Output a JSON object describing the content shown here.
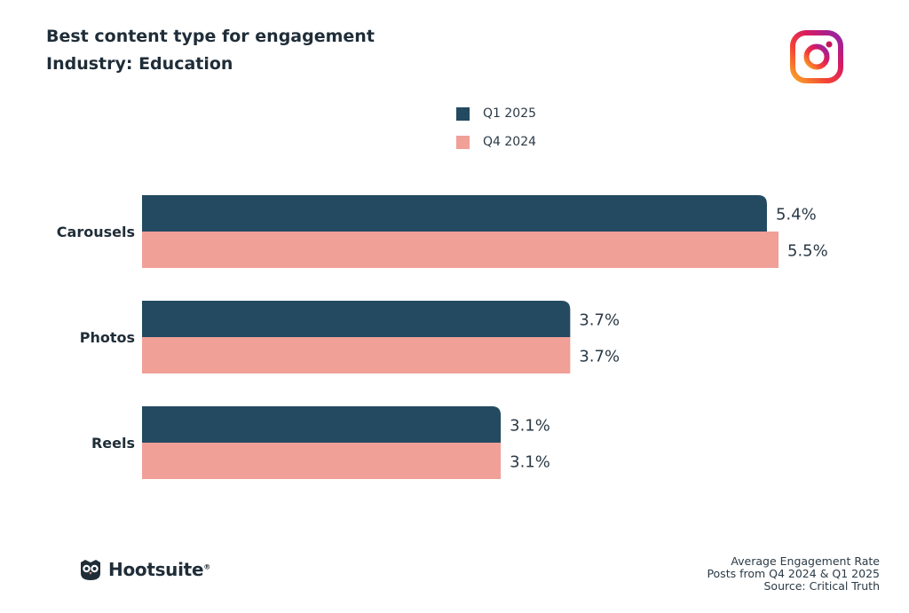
{
  "header": {
    "title": "Best content type for engagement",
    "subtitle": "Industry: Education"
  },
  "icons": {
    "platform": "instagram-icon",
    "brand": "owl-icon"
  },
  "colors": {
    "q1_2025": "#234a61",
    "q4_2024": "#f0a097",
    "text": "#1f2d38"
  },
  "legend": {
    "items": [
      {
        "label": "Q1 2025",
        "color": "#234a61"
      },
      {
        "label": "Q4 2024",
        "color": "#f0a097"
      }
    ]
  },
  "chart_data": {
    "type": "bar",
    "orientation": "horizontal",
    "title": "Best content type for engagement",
    "subtitle": "Industry: Education",
    "categories": [
      "Carousels",
      "Photos",
      "Reels"
    ],
    "series": [
      {
        "name": "Q1 2025",
        "values": [
          5.4,
          3.7,
          3.1
        ],
        "labels": [
          "5.4%",
          "3.7%",
          "3.1%"
        ],
        "color": "#234a61"
      },
      {
        "name": "Q4 2024",
        "values": [
          5.5,
          3.7,
          3.1
        ],
        "labels": [
          "5.5%",
          "3.7%",
          "3.1%"
        ],
        "color": "#f0a097"
      }
    ],
    "unit": "%",
    "xlim": [
      0,
      5.5
    ],
    "grid": false,
    "legend_position": "top-center"
  },
  "footer": {
    "brand": "Hootsuite",
    "brand_mark": "®",
    "notes": [
      "Average Engagement Rate",
      "Posts from Q4 2024 & Q1 2025",
      "Source: Critical Truth"
    ]
  }
}
